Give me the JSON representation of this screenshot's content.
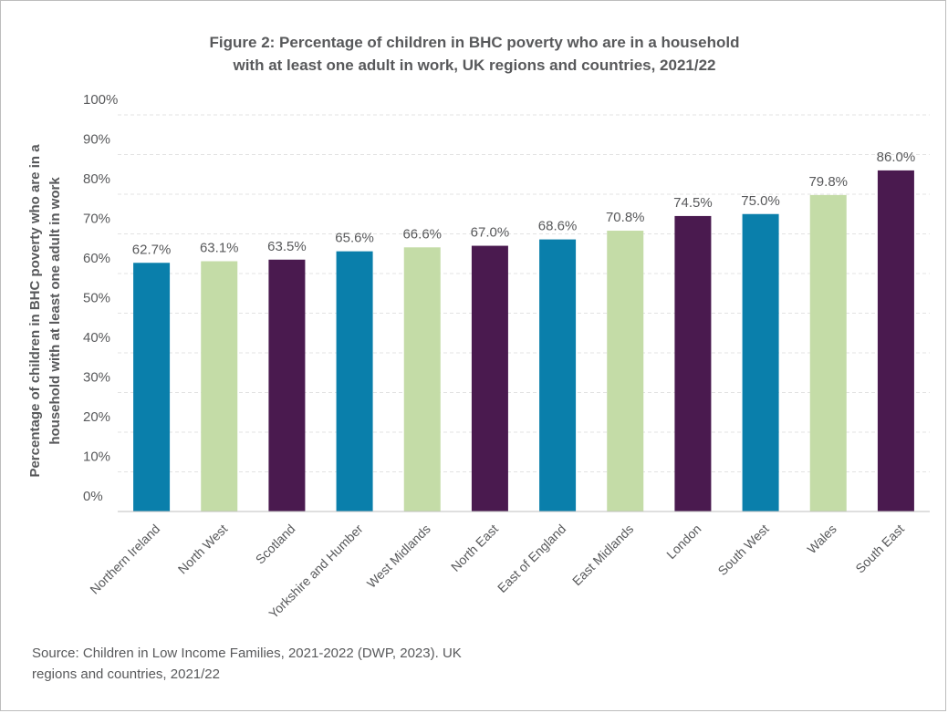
{
  "chart_data": {
    "type": "bar",
    "title_lines": [
      "Figure 2: Percentage of children in BHC poverty who are in a household",
      "with at least one adult in work, UK regions and countries, 2021/22"
    ],
    "ylabel_lines": [
      "Percentage of children in BHC poverty who are in a",
      "household with at least one adult in work"
    ],
    "xlabel": "",
    "ylim": [
      0,
      100
    ],
    "yticks": [
      "0%",
      "10%",
      "20%",
      "30%",
      "40%",
      "50%",
      "60%",
      "70%",
      "80%",
      "90%",
      "100%"
    ],
    "grid": true,
    "categories": [
      "Northern Ireland",
      "North West",
      "Scotland",
      "Yorkshire and Humber",
      "West Midlands",
      "North East",
      "East of England",
      "East Midlands",
      "London",
      "South West",
      "Wales",
      "South East"
    ],
    "values": [
      62.7,
      63.1,
      63.5,
      65.6,
      66.6,
      67.0,
      68.6,
      70.8,
      74.5,
      75.0,
      79.8,
      86.0
    ],
    "value_labels": [
      "62.7%",
      "63.1%",
      "63.5%",
      "65.6%",
      "66.6%",
      "67.0%",
      "68.6%",
      "70.8%",
      "74.5%",
      "75.0%",
      "79.8%",
      "86.0%"
    ],
    "bar_colors": [
      "#0a7fab",
      "#c4dca7",
      "#4a1a4f",
      "#0a7fab",
      "#c4dca7",
      "#4a1a4f",
      "#0a7fab",
      "#c4dca7",
      "#4a1a4f",
      "#0a7fab",
      "#c4dca7",
      "#4a1a4f"
    ]
  },
  "source_text": "Source: Children in Low Income Families, 2021-2022 (DWP, 2023). UK regions and countries, 2021/22",
  "colors": {
    "text": "#58595b",
    "teal": "#0a7fab",
    "green": "#c4dca7",
    "purple": "#4a1a4f"
  }
}
